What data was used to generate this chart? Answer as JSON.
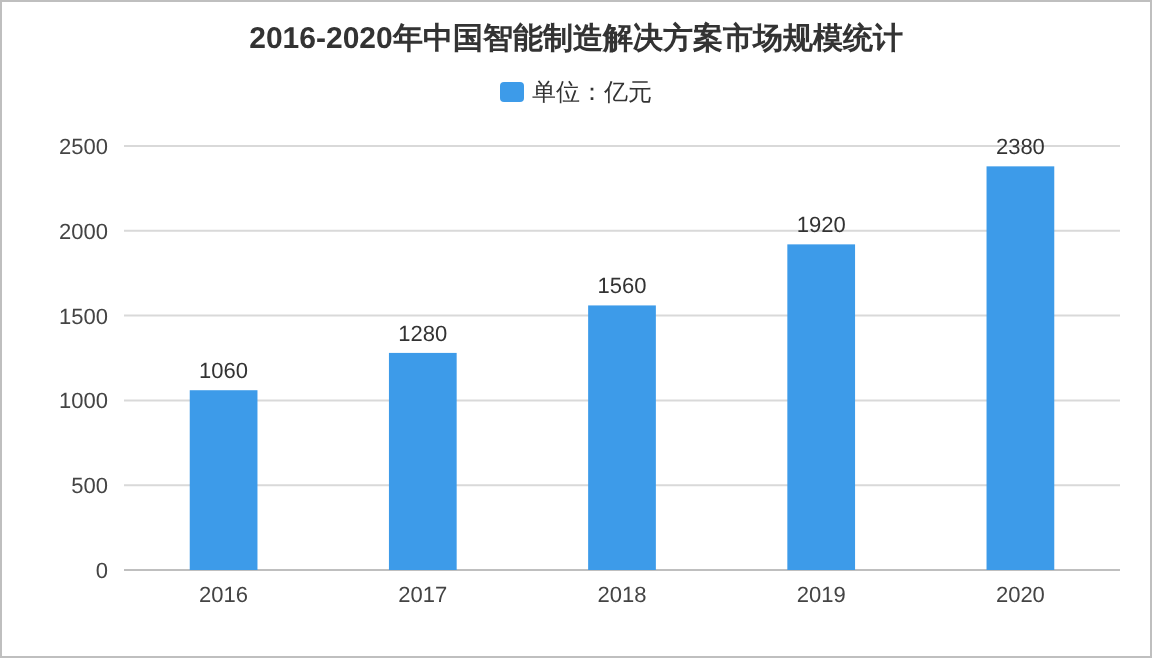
{
  "chart_data": {
    "type": "bar",
    "title": "2016-2020年中国智能制造解决方案市场规模统计",
    "categories": [
      "2016",
      "2017",
      "2018",
      "2019",
      "2020"
    ],
    "series": [
      {
        "name": "单位：亿元",
        "color": "#3d9be9",
        "values": [
          1060,
          1280,
          1560,
          1920,
          2380
        ]
      }
    ],
    "ylim": [
      0,
      2500
    ],
    "yticks": [
      0,
      500,
      1000,
      1500,
      2000,
      2500
    ],
    "grid": "y",
    "legend": "top",
    "data_labels": true
  }
}
